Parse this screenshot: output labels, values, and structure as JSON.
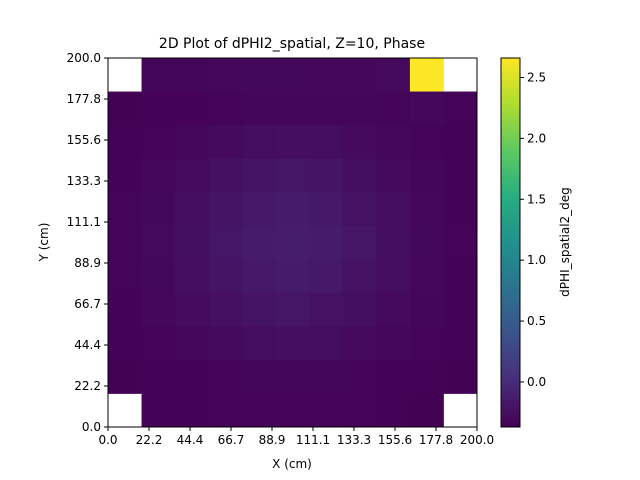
{
  "chart_data": {
    "type": "heatmap",
    "title": "2D Plot of dPHI2_spatial, Z=10, Phase",
    "xlabel": "X (cm)",
    "ylabel": "Y (cm)",
    "colorbar_label": "dPHI_spatial2_deg",
    "colormap": "viridis",
    "xlim": [
      0.0,
      200.0
    ],
    "ylim": [
      0.0,
      200.0
    ],
    "clim": [
      -0.37,
      2.66
    ],
    "x_ticks": [
      "0.0",
      "22.2",
      "44.4",
      "66.7",
      "88.9",
      "111.1",
      "133.3",
      "155.6",
      "177.8",
      "200.0"
    ],
    "y_ticks": [
      "0.0",
      "22.2",
      "44.4",
      "66.7",
      "88.9",
      "111.1",
      "133.3",
      "155.6",
      "177.8",
      "200.0"
    ],
    "colorbar_ticks": [
      "0.0",
      "0.5",
      "1.0",
      "1.5",
      "2.0",
      "2.5"
    ],
    "colorbar_tick_values": [
      0.0,
      0.5,
      1.0,
      1.5,
      2.0,
      2.5
    ],
    "row_order": "top-to-bottom (y from 200.0 down to 0.0)",
    "grid_values": [
      [
        null,
        -0.33,
        -0.33,
        -0.32,
        -0.31,
        -0.31,
        -0.32,
        -0.32,
        -0.3,
        2.66,
        null
      ],
      [
        -0.36,
        -0.35,
        -0.35,
        -0.34,
        -0.33,
        -0.33,
        -0.33,
        -0.33,
        -0.34,
        -0.32,
        -0.34
      ],
      [
        -0.35,
        -0.34,
        -0.32,
        -0.29,
        -0.27,
        -0.26,
        -0.27,
        -0.29,
        -0.32,
        -0.34,
        -0.35
      ],
      [
        -0.35,
        -0.32,
        -0.28,
        -0.24,
        -0.21,
        -0.2,
        -0.21,
        -0.25,
        -0.29,
        -0.33,
        -0.35
      ],
      [
        -0.34,
        -0.31,
        -0.26,
        -0.21,
        -0.17,
        -0.15,
        -0.17,
        -0.22,
        -0.27,
        -0.32,
        -0.35
      ],
      [
        -0.34,
        -0.3,
        -0.25,
        -0.19,
        -0.15,
        -0.13,
        -0.15,
        -0.2,
        -0.26,
        -0.31,
        -0.34
      ],
      [
        -0.34,
        -0.31,
        -0.26,
        -0.21,
        -0.17,
        -0.15,
        -0.17,
        -0.22,
        -0.27,
        -0.32,
        -0.35
      ],
      [
        -0.35,
        -0.32,
        -0.28,
        -0.24,
        -0.21,
        -0.2,
        -0.22,
        -0.25,
        -0.29,
        -0.33,
        -0.35
      ],
      [
        -0.35,
        -0.34,
        -0.32,
        -0.29,
        -0.27,
        -0.26,
        -0.27,
        -0.29,
        -0.32,
        -0.34,
        -0.35
      ],
      [
        -0.36,
        -0.35,
        -0.35,
        -0.34,
        -0.33,
        -0.33,
        -0.33,
        -0.34,
        -0.35,
        -0.35,
        -0.36
      ],
      [
        null,
        -0.35,
        -0.35,
        -0.34,
        -0.34,
        -0.34,
        -0.34,
        -0.34,
        -0.35,
        -0.36,
        null
      ]
    ]
  }
}
